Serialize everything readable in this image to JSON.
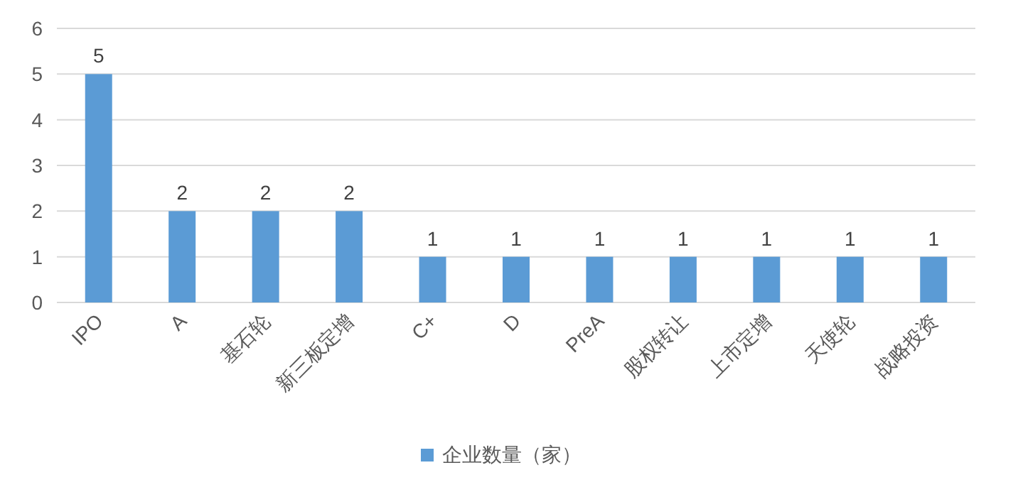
{
  "chart_data": {
    "type": "bar",
    "categories": [
      "IPO",
      "A",
      "基石轮",
      "新三板定增",
      "C+",
      "D",
      "PreA",
      "股权转让",
      "上市定增",
      "天使轮",
      "战略投资"
    ],
    "series": [
      {
        "name": "企业数量（家）",
        "color": "#5b9bd5",
        "values": [
          5,
          2,
          2,
          2,
          1,
          1,
          1,
          1,
          1,
          1,
          1
        ]
      }
    ],
    "ylim": [
      0,
      6
    ],
    "yticks": [
      0,
      1,
      2,
      3,
      4,
      5,
      6
    ],
    "grid": "y",
    "legend": "bottom",
    "data_labels": true
  }
}
